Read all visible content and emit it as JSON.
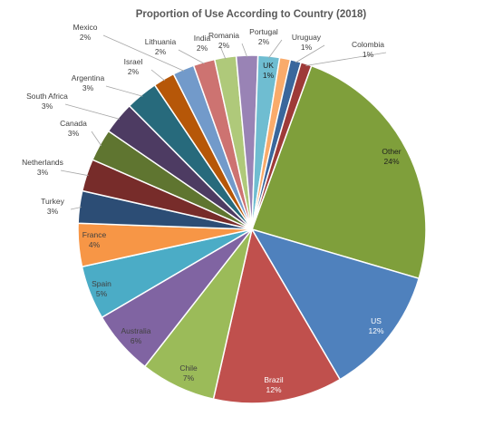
{
  "chart_data": {
    "type": "pie",
    "title": "Proportion of Use According to Country (2018)",
    "unit": "%",
    "slices": [
      {
        "name": "Other",
        "value": 24,
        "label": "24%",
        "color": "#7f9f3b"
      },
      {
        "name": "US",
        "value": 12,
        "label": "12%",
        "color": "#4f81bd"
      },
      {
        "name": "Brazil",
        "value": 12,
        "label": "12%",
        "color": "#c0504d"
      },
      {
        "name": "Chile",
        "value": 7,
        "label": "7%",
        "color": "#9bbb59"
      },
      {
        "name": "Australia",
        "value": 6,
        "label": "6%",
        "color": "#8064a2"
      },
      {
        "name": "Spain",
        "value": 5,
        "label": "5%",
        "color": "#4bacc6"
      },
      {
        "name": "France",
        "value": 4,
        "label": "4%",
        "color": "#f79646"
      },
      {
        "name": "Turkey",
        "value": 3,
        "label": "3%",
        "color": "#2c4d75"
      },
      {
        "name": "Netherlands",
        "value": 3,
        "label": "3%",
        "color": "#772c2a"
      },
      {
        "name": "Canada",
        "value": 3,
        "label": "3%",
        "color": "#5f7530"
      },
      {
        "name": "South Africa",
        "value": 3,
        "label": "3%",
        "color": "#4d3b62"
      },
      {
        "name": "Argentina",
        "value": 3,
        "label": "3%",
        "color": "#276a7c"
      },
      {
        "name": "Israel",
        "value": 2,
        "label": "2%",
        "color": "#b65708"
      },
      {
        "name": "Mexico",
        "value": 2,
        "label": "2%",
        "color": "#729aca"
      },
      {
        "name": "Lithuania",
        "value": 2,
        "label": "2%",
        "color": "#cd7371"
      },
      {
        "name": "India",
        "value": 2,
        "label": "2%",
        "color": "#afc97a"
      },
      {
        "name": "Romania",
        "value": 2,
        "label": "2%",
        "color": "#9983b5"
      },
      {
        "name": "Portugal",
        "value": 2,
        "label": "2%",
        "color": "#6fbdd1"
      },
      {
        "name": "UK",
        "value": 1,
        "label": "1%",
        "color": "#f9ab6b"
      },
      {
        "name": "Uruguay",
        "value": 1,
        "label": "1%",
        "color": "#3a679c"
      },
      {
        "name": "Colombia",
        "value": 1,
        "label": "1%",
        "color": "#9e3a38"
      }
    ],
    "start_angle_deg": 20,
    "direction": "clockwise",
    "legend": "none",
    "data_labels": "category name and percentage"
  }
}
